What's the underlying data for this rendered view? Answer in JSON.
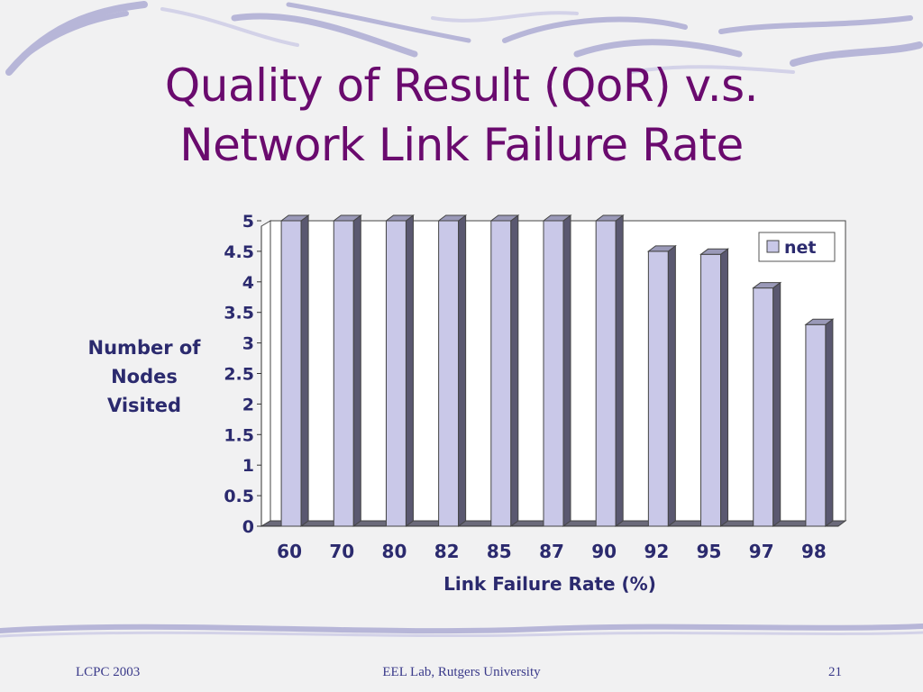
{
  "slide": {
    "title_line1": "Quality of Result (QoR) v.s.",
    "title_line2": "Network Link Failure Rate",
    "footer_left": "LCPC 2003",
    "footer_center": "EEL Lab, Rutgers University",
    "footer_right": "21"
  },
  "colors": {
    "title": "#6a0a6e",
    "bar_front": "#c9c8e8",
    "bar_side": "#5a5870",
    "text": "#2b2a6e"
  },
  "chart_data": {
    "type": "bar",
    "categories": [
      "60",
      "70",
      "80",
      "82",
      "85",
      "87",
      "90",
      "92",
      "95",
      "97",
      "98"
    ],
    "series": [
      {
        "name": "net",
        "values": [
          5,
          5,
          5,
          5,
          5,
          5,
          5,
          4.5,
          4.45,
          3.9,
          3.3
        ]
      }
    ],
    "ylabel_lines": [
      "Number of",
      "Nodes",
      "Visited"
    ],
    "xlabel": "Link Failure Rate (%)",
    "ylim": [
      0,
      5
    ],
    "yticks": [
      "0",
      "0.5",
      "1",
      "1.5",
      "2",
      "2.5",
      "3",
      "3.5",
      "4",
      "4.5",
      "5"
    ],
    "grid": false,
    "legend_position": "top-right",
    "style": "3d-bar"
  }
}
